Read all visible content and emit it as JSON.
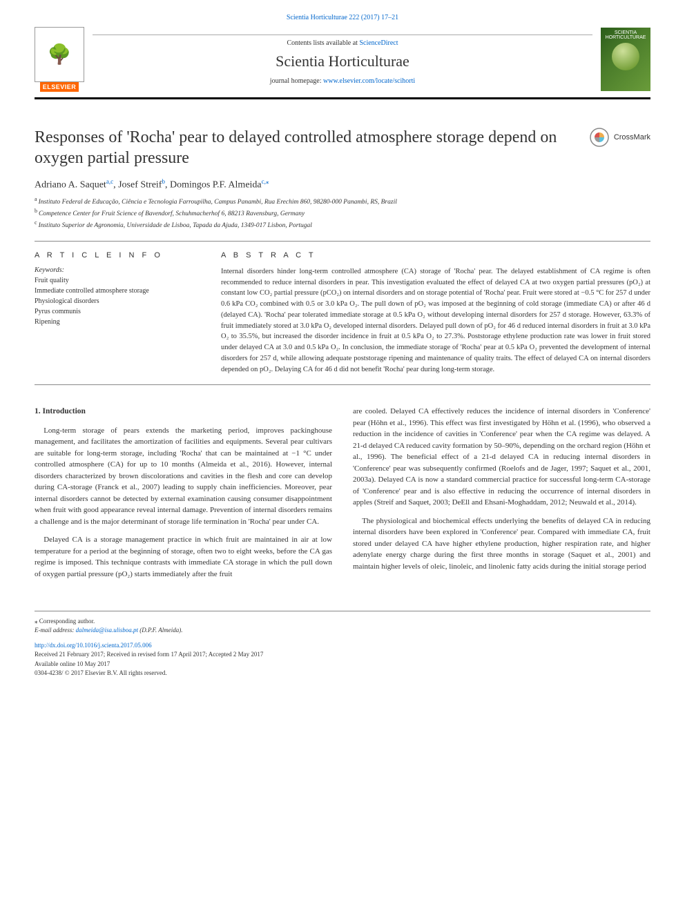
{
  "journal_ref": "Scientia Horticulturae 222 (2017) 17–21",
  "header": {
    "contents_line_pre": "Contents lists available at ",
    "contents_link": "ScienceDirect",
    "journal_name": "Scientia Horticulturae",
    "homepage_pre": "journal homepage: ",
    "homepage_url": "www.elsevier.com/locate/scihorti",
    "elsevier_label": "ELSEVIER",
    "cover_label_top": "SCIENTIA",
    "cover_label_bot": "HORTICULTURAE"
  },
  "title": "Responses of 'Rocha' pear to delayed controlled atmosphere storage depend on oxygen partial pressure",
  "crossmark_label": "CrossMark",
  "authors_line": "Adriano A. Saquet",
  "authors": [
    {
      "name": "Adriano A. Saquet",
      "marks": "a,c"
    },
    {
      "name": "Josef Streif",
      "marks": "b"
    },
    {
      "name": "Domingos P.F. Almeida",
      "marks": "c,⁎"
    }
  ],
  "affiliations": [
    {
      "sup": "a",
      "text": "Instituto Federal de Educação, Ciência e Tecnologia Farroupilha, Campus Panambi, Rua Erechim 860, 98280-000 Panambi, RS, Brazil"
    },
    {
      "sup": "b",
      "text": "Competence Center for Fruit Science of Bavendorf, Schuhmacherhof 6, 88213 Ravensburg, Germany"
    },
    {
      "sup": "c",
      "text": "Instituto Superior de Agronomia, Universidade de Lisboa, Tapada da Ajuda, 1349-017 Lisbon, Portugal"
    }
  ],
  "article_info": {
    "header": "A R T I C L E  I N F O",
    "keywords_label": "Keywords:",
    "keywords": [
      "Fruit quality",
      "Immediate controlled atmosphere storage",
      "Physiological disorders",
      "Pyrus communis",
      "Ripening"
    ]
  },
  "abstract": {
    "header": "A B S T R A C T",
    "text": "Internal disorders hinder long-term controlled atmosphere (CA) storage of 'Rocha' pear. The delayed establishment of CA regime is often recommended to reduce internal disorders in pear. This investigation evaluated the effect of delayed CA at two oxygen partial pressures (pO₂) at constant low CO₂ partial pressure (pCO₂) on internal disorders and on storage potential of 'Rocha' pear. Fruit were stored at −0.5 °C for 257 d under 0.6 kPa CO₂ combined with 0.5 or 3.0 kPa O₂. The pull down of pO₂ was imposed at the beginning of cold storage (immediate CA) or after 46 d (delayed CA). 'Rocha' pear tolerated immediate storage at 0.5 kPa O₂ without developing internal disorders for 257 d storage. However, 63.3% of fruit immediately stored at 3.0 kPa O₂ developed internal disorders. Delayed pull down of pO₂ for 46 d reduced internal disorders in fruit at 3.0 kPa O₂ to 35.5%, but increased the disorder incidence in fruit at 0.5 kPa O₂ to 27.3%. Poststorage ethylene production rate was lower in fruit stored under delayed CA at 3.0 and 0.5 kPa O₂. In conclusion, the immediate storage of 'Rocha' pear at 0.5 kPa O₂ prevented the development of internal disorders for 257 d, while allowing adequate poststorage ripening and maintenance of quality traits. The effect of delayed CA on internal disorders depended on pO₂. Delaying CA for 46 d did not benefit 'Rocha' pear during long-term storage."
  },
  "body": {
    "intro_heading": "1. Introduction",
    "p1": "Long-term storage of pears extends the marketing period, improves packinghouse management, and facilitates the amortization of facilities and equipments. Several pear cultivars are suitable for long-term storage, including 'Rocha' that can be maintained at −1 °C under controlled atmosphere (CA) for up to 10 months (Almeida et al., 2016). However, internal disorders characterized by brown discolorations and cavities in the flesh and core can develop during CA-storage (Franck et al., 2007) leading to supply chain inefficiencies. Moreover, pear internal disorders cannot be detected by external examination causing consumer disappointment when fruit with good appearance reveal internal damage. Prevention of internal disorders remains a challenge and is the major determinant of storage life termination in 'Rocha' pear under CA.",
    "p2": "Delayed CA is a storage management practice in which fruit are maintained in air at low temperature for a period at the beginning of storage, often two to eight weeks, before the CA gas regime is imposed. This technique contrasts with immediate CA storage in which the pull down of oxygen partial pressure (pO₂) starts immediately after the fruit",
    "p3": "are cooled. Delayed CA effectively reduces the incidence of internal disorders in 'Conference' pear (Höhn et al., 1996). This effect was first investigated by Höhn et al. (1996), who observed a reduction in the incidence of cavities in 'Conference' pear when the CA regime was delayed. A 21-d delayed CA reduced cavity formation by 50–90%, depending on the orchard region (Höhn et al., 1996). The beneficial effect of a 21-d delayed CA in reducing internal disorders in 'Conference' pear was subsequently confirmed (Roelofs and de Jager, 1997; Saquet et al., 2001, 2003a). Delayed CA is now a standard commercial practice for successful long-term CA-storage of 'Conference' pear and is also effective in reducing the occurrence of internal disorders in apples (Streif and Saquet, 2003; DeEll and Ehsani-Moghaddam, 2012; Neuwald et al., 2014).",
    "p4": "The physiological and biochemical effects underlying the benefits of delayed CA in reducing internal disorders have been explored in 'Conference' pear. Compared with immediate CA, fruit stored under delayed CA have higher ethylene production, higher respiration rate, and higher adenylate energy charge during the first three months in storage (Saquet et al., 2001) and maintain higher levels of oleic, linoleic, and linolenic fatty acids during the initial storage period"
  },
  "footer": {
    "corr": "⁎ Corresponding author.",
    "email_label": "E-mail address: ",
    "email": "dalmeida@isa.ulisboa.pt",
    "email_suffix": " (D.P.F. Almeida).",
    "doi": "http://dx.doi.org/10.1016/j.scienta.2017.05.006",
    "received": "Received 21 February 2017; Received in revised form 17 April 2017; Accepted 2 May 2017",
    "online": "Available online 10 May 2017",
    "copyright": "0304-4238/ © 2017 Elsevier B.V. All rights reserved."
  },
  "colors": {
    "link": "#0066cc",
    "elsevier_orange": "#ff6600",
    "cover_green_dark": "#2a5c1a",
    "text": "#333333",
    "divider": "#888888"
  }
}
